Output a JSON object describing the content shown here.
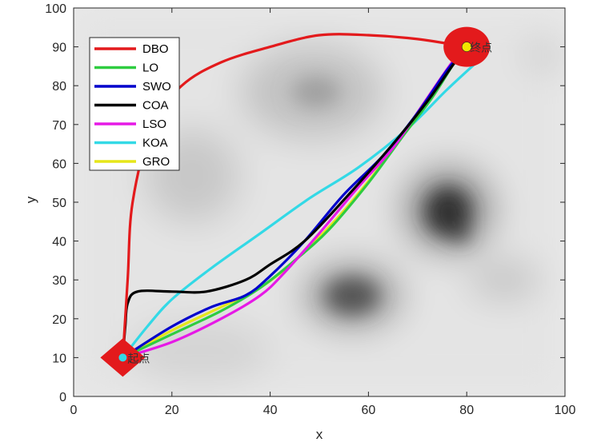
{
  "chart_data": {
    "type": "line",
    "title": "",
    "xlabel": "x",
    "ylabel": "y",
    "xlim": [
      0,
      100
    ],
    "ylim": [
      0,
      100
    ],
    "xticks": [
      "0",
      "20",
      "40",
      "60",
      "80",
      "100"
    ],
    "yticks": [
      "0",
      "10",
      "20",
      "30",
      "40",
      "50",
      "60",
      "70",
      "80",
      "90",
      "100"
    ],
    "grid": false,
    "legend_position": "top-left",
    "background": "grayscale terrain / obstacle map",
    "start": {
      "x": 10,
      "y": 10,
      "label": "起点",
      "marker": "red-diamond"
    },
    "goal": {
      "x": 80,
      "y": 90,
      "label": "终点",
      "marker": "red-ellipse"
    },
    "series": [
      {
        "name": "DBO",
        "color": "#e31a1c",
        "points": [
          [
            10,
            10
          ],
          [
            11,
            30
          ],
          [
            12,
            50
          ],
          [
            16,
            70
          ],
          [
            22,
            80
          ],
          [
            30,
            86
          ],
          [
            40,
            90
          ],
          [
            50,
            93
          ],
          [
            60,
            93
          ],
          [
            70,
            92
          ],
          [
            80,
            90
          ]
        ]
      },
      {
        "name": "LO",
        "color": "#2ecc40",
        "points": [
          [
            10,
            10
          ],
          [
            20,
            16
          ],
          [
            30,
            22
          ],
          [
            38,
            28
          ],
          [
            45,
            35
          ],
          [
            52,
            43
          ],
          [
            60,
            55
          ],
          [
            67,
            67
          ],
          [
            73,
            77
          ],
          [
            78,
            87
          ],
          [
            80,
            90
          ]
        ]
      },
      {
        "name": "SWO",
        "color": "#0000cc",
        "points": [
          [
            10,
            10
          ],
          [
            20,
            18
          ],
          [
            28,
            23
          ],
          [
            35,
            26
          ],
          [
            40,
            31
          ],
          [
            47,
            40
          ],
          [
            55,
            52
          ],
          [
            63,
            62
          ],
          [
            70,
            73
          ],
          [
            76,
            84
          ],
          [
            80,
            90
          ]
        ]
      },
      {
        "name": "COA",
        "color": "#000000",
        "points": [
          [
            10,
            10
          ],
          [
            10.5,
            18
          ],
          [
            11,
            24
          ],
          [
            13,
            27
          ],
          [
            20,
            27
          ],
          [
            27,
            27
          ],
          [
            35,
            30
          ],
          [
            40,
            34
          ],
          [
            47,
            40
          ],
          [
            56,
            52
          ],
          [
            65,
            65
          ],
          [
            72,
            76
          ],
          [
            77,
            85
          ],
          [
            80,
            90
          ]
        ]
      },
      {
        "name": "LSO",
        "color": "#e619e6",
        "points": [
          [
            10,
            10
          ],
          [
            20,
            14
          ],
          [
            30,
            20
          ],
          [
            38,
            26
          ],
          [
            43,
            32
          ],
          [
            50,
            42
          ],
          [
            58,
            54
          ],
          [
            65,
            64
          ],
          [
            71,
            75
          ],
          [
            77,
            86
          ],
          [
            80,
            90
          ]
        ]
      },
      {
        "name": "KOA",
        "color": "#33d9e6",
        "points": [
          [
            10,
            10
          ],
          [
            15,
            18
          ],
          [
            20,
            25
          ],
          [
            28,
            33
          ],
          [
            38,
            42
          ],
          [
            48,
            51
          ],
          [
            58,
            59
          ],
          [
            68,
            69
          ],
          [
            76,
            79
          ],
          [
            82,
            86
          ]
        ]
      },
      {
        "name": "GRO",
        "color": "#e6e619",
        "points": [
          [
            10,
            10
          ],
          [
            20,
            17
          ],
          [
            30,
            23
          ],
          [
            38,
            28
          ],
          [
            45,
            35
          ],
          [
            53,
            45
          ],
          [
            61,
            57
          ],
          [
            68,
            69
          ],
          [
            74,
            80
          ],
          [
            80,
            90
          ]
        ]
      }
    ]
  }
}
